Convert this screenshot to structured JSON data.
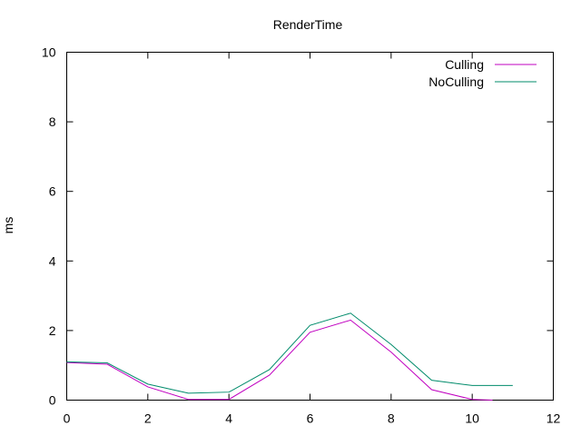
{
  "chart_data": {
    "type": "line",
    "title": "RenderTime",
    "xlabel": "",
    "ylabel": "ms",
    "xlim": [
      0,
      12
    ],
    "ylim": [
      0,
      10
    ],
    "xticks": [
      "0",
      "2",
      "4",
      "6",
      "8",
      "10",
      "12"
    ],
    "yticks": [
      "0",
      "2",
      "4",
      "6",
      "8",
      "10"
    ],
    "grid": false,
    "legend_position": "top-right",
    "series": [
      {
        "name": "Culling",
        "color": "#c000c0",
        "x": [
          0,
          1,
          2,
          3,
          4,
          5,
          6,
          7,
          8,
          9,
          10,
          10.5
        ],
        "y": [
          1.08,
          1.03,
          0.38,
          0.02,
          0.02,
          0.72,
          1.95,
          2.3,
          1.38,
          0.3,
          0.02,
          0.0
        ]
      },
      {
        "name": "NoCulling",
        "color": "#008b6b",
        "x": [
          0,
          1,
          2,
          3,
          4,
          5,
          6,
          7,
          8,
          9,
          10,
          11
        ],
        "y": [
          1.1,
          1.07,
          0.46,
          0.2,
          0.23,
          0.88,
          2.15,
          2.5,
          1.6,
          0.57,
          0.42,
          0.42
        ]
      }
    ]
  }
}
